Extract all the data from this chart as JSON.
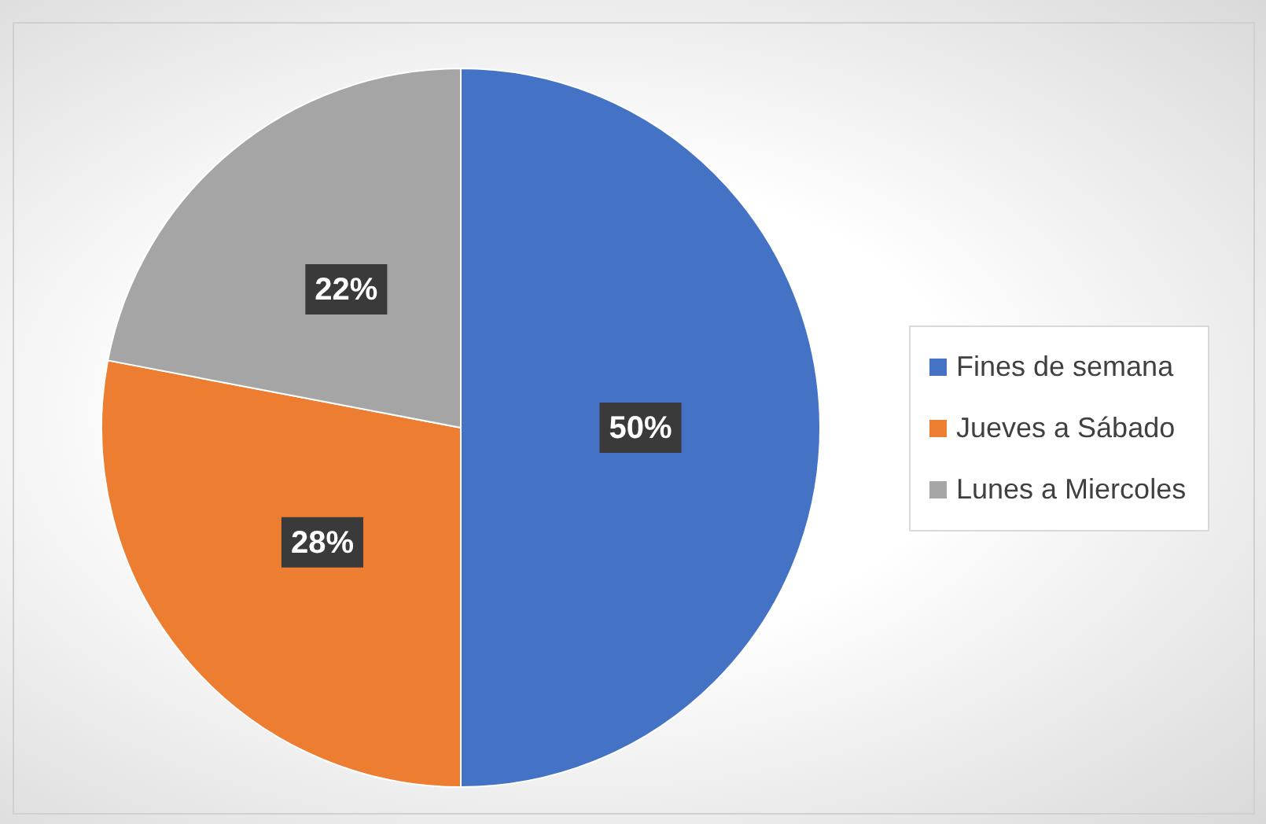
{
  "chart_data": {
    "type": "pie",
    "categories": [
      "Fines de semana",
      "Jueves a Sábado",
      "Lunes a Miercoles"
    ],
    "values": [
      50,
      28,
      22
    ],
    "colors": [
      "#4472c4",
      "#ed7d31",
      "#a5a5a5"
    ],
    "value_labels": [
      "50%",
      "28%",
      "22%"
    ],
    "legend": "right"
  }
}
